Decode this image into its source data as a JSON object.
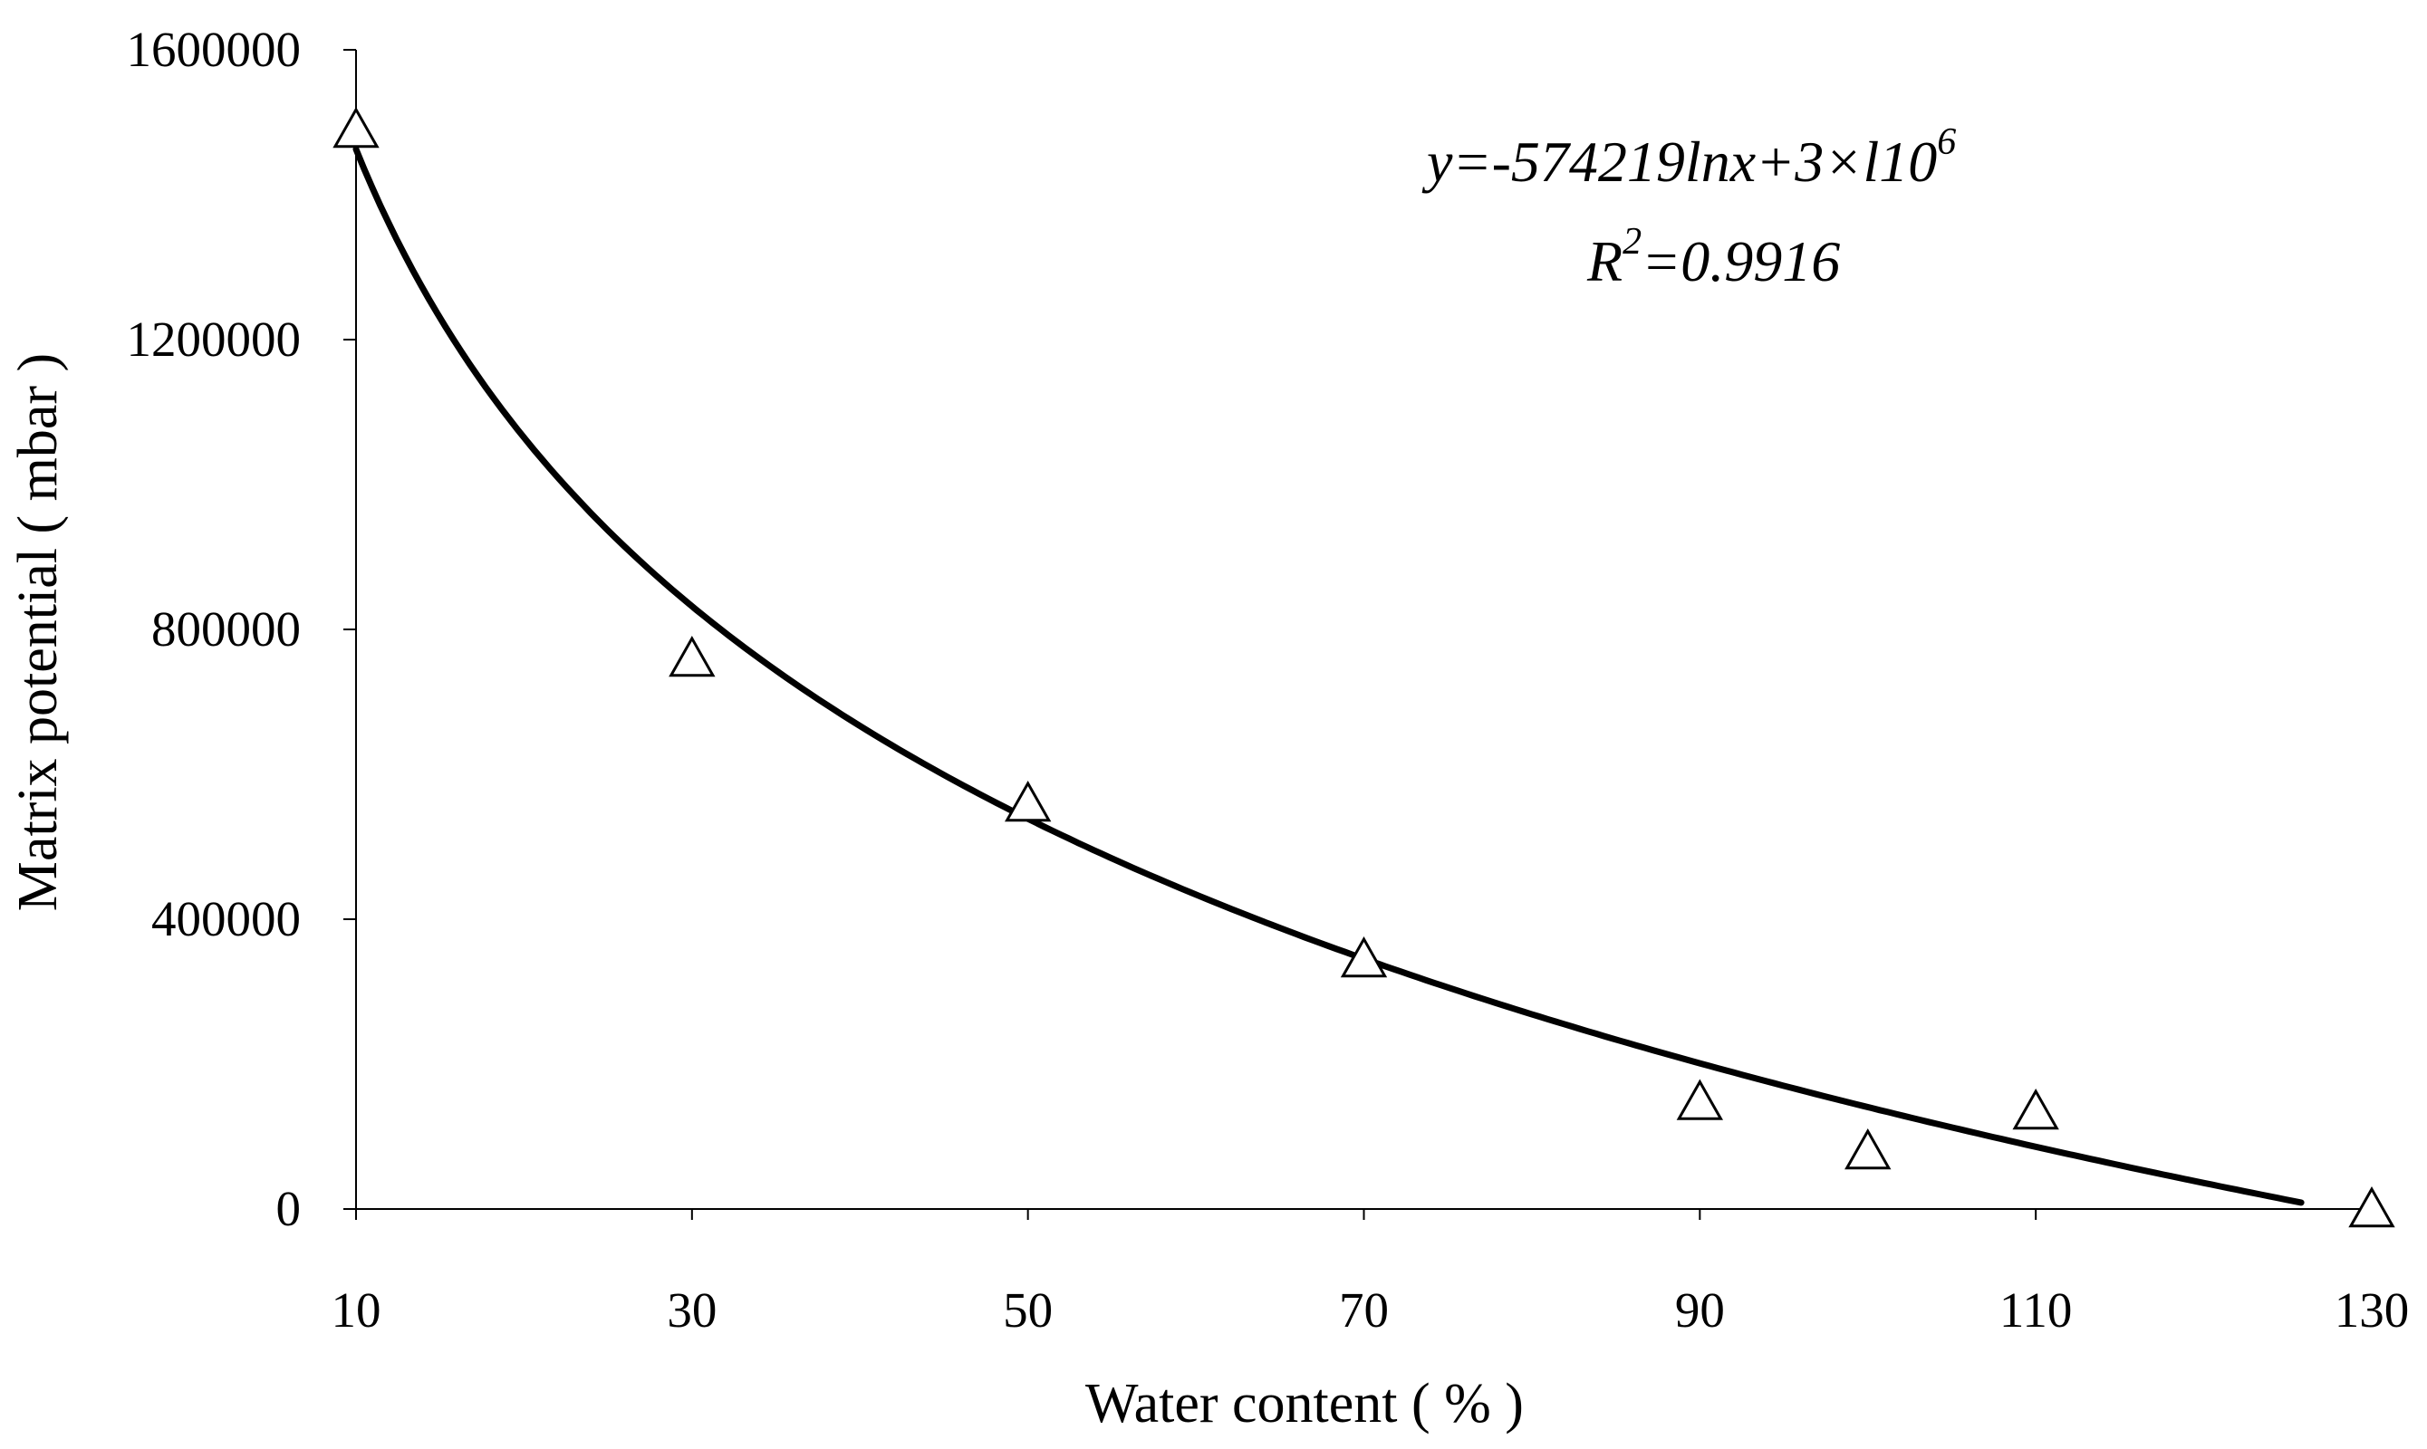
{
  "chart_data": {
    "type": "scatter",
    "title": "",
    "xlabel": "Water content ( % )",
    "ylabel": "Matrix potential ( mbar )",
    "xlim": [
      10,
      130
    ],
    "ylim": [
      0,
      1600000
    ],
    "x_ticks": [
      "10",
      "30",
      "50",
      "70",
      "90",
      "110",
      "130"
    ],
    "y_ticks": [
      "0",
      "400000",
      "800000",
      "1200000",
      "1600000"
    ],
    "grid": false,
    "legend": "none",
    "series": [
      {
        "marker": "triangle",
        "points": [
          {
            "x": 10,
            "y": 1490000
          },
          {
            "x": 30,
            "y": 760000
          },
          {
            "x": 50,
            "y": 560000
          },
          {
            "x": 70,
            "y": 345000
          },
          {
            "x": 90,
            "y": 148000
          },
          {
            "x": 100,
            "y": 80000
          },
          {
            "x": 110,
            "y": 135000
          },
          {
            "x": 130,
            "y": 0
          }
        ]
      }
    ],
    "trendline": {
      "type": "logarithmic",
      "a": -574219,
      "b": 2785000,
      "x_range": [
        10,
        125.8
      ]
    },
    "annotations": {
      "equation_y": "y",
      "equation_rest": "=-574219lnx+3×l10",
      "equation_exp": "6",
      "r2_r": "R",
      "r2_exp": "2",
      "r2_rest": "=0.9916"
    },
    "colors": {
      "ink": "#000000",
      "background": "#ffffff"
    }
  }
}
